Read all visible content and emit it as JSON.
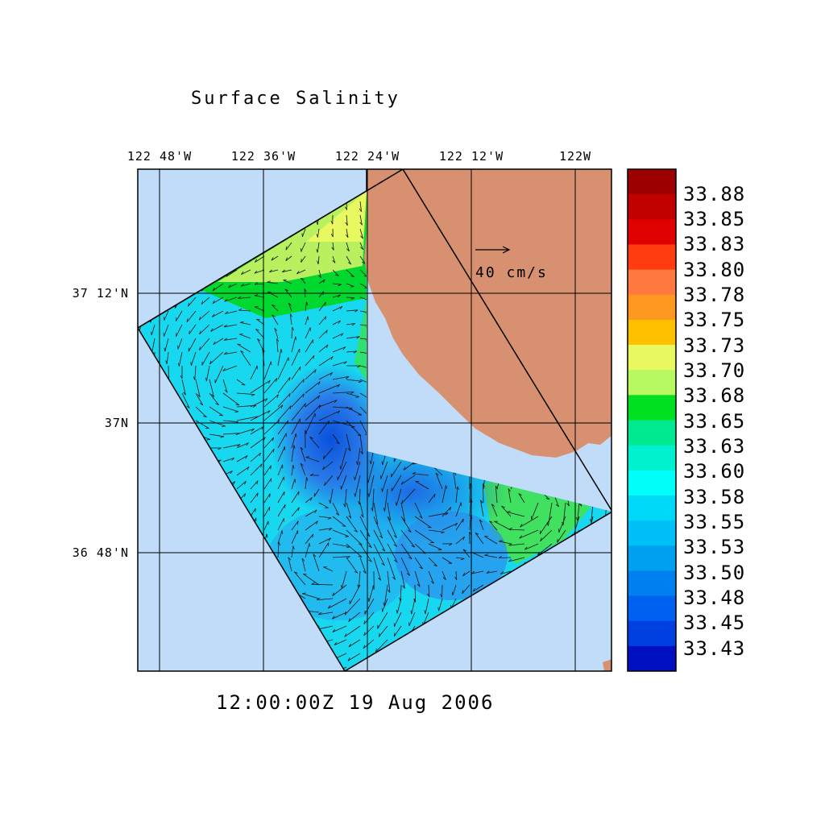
{
  "title": "Surface Salinity",
  "timestamp": "12:00:00Z  19 Aug 2006",
  "axes": {
    "lon_ticks": [
      "122 48'W",
      "122 36'W",
      "122 24'W",
      "122 12'W",
      "122W"
    ],
    "lat_ticks": [
      "37 12'N",
      "37N",
      "36 48'N"
    ]
  },
  "reference_vector": {
    "label": "40 cm/s"
  },
  "colorbar": {
    "labels": [
      "33.88",
      "33.85",
      "33.83",
      "33.80",
      "33.78",
      "33.75",
      "33.73",
      "33.70",
      "33.68",
      "33.65",
      "33.63",
      "33.60",
      "33.58",
      "33.55",
      "33.53",
      "33.50",
      "33.48",
      "33.45",
      "33.43"
    ],
    "colors": [
      "#9c0000",
      "#c20000",
      "#e00000",
      "#ff3c10",
      "#ff7840",
      "#ff9820",
      "#ffc000",
      "#e8f860",
      "#b8f860",
      "#00e020",
      "#00e890",
      "#00f0d0",
      "#00fff8",
      "#00d8f8",
      "#00c0f8",
      "#00a0f0",
      "#0080f0",
      "#0060f0",
      "#0040e0",
      "#0010c0"
    ]
  },
  "colors": {
    "ocean": "#c0dcf8",
    "land": "#d79170",
    "low_salinity": "#1e64e0",
    "mid_salinity": "#40f0f0",
    "high_salinity": "#00e020"
  }
}
